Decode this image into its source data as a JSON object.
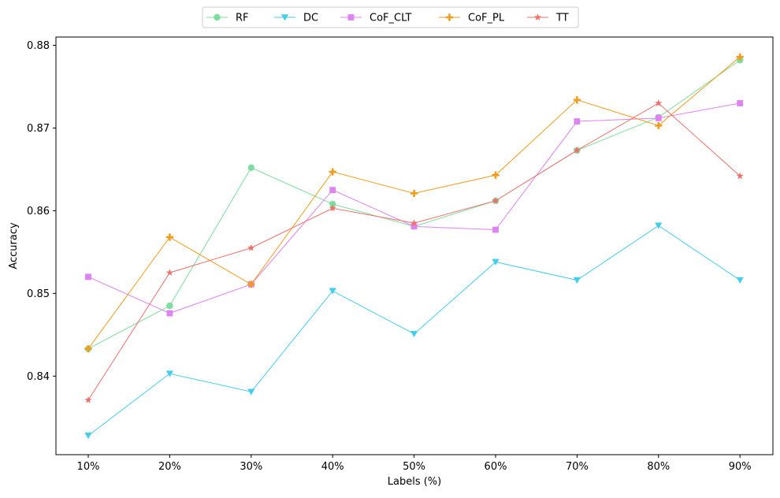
{
  "chart_data": {
    "type": "line",
    "title": "",
    "xlabel": "Labels (%)",
    "ylabel": "Accuracy",
    "categories": [
      "10%",
      "20%",
      "30%",
      "40%",
      "50%",
      "60%",
      "70%",
      "80%",
      "90%"
    ],
    "ylim": [
      0.8305,
      0.881
    ],
    "yticks": [
      0.84,
      0.85,
      0.86,
      0.87,
      0.88
    ],
    "ytick_labels": [
      "0.84",
      "0.85",
      "0.86",
      "0.87",
      "0.88"
    ],
    "grid": false,
    "legend_position": "top-center",
    "series": [
      {
        "name": "RF",
        "color": "#7fdc9f",
        "marker": "circle",
        "values": [
          0.8433,
          0.8485,
          0.8652,
          0.8608,
          0.8581,
          0.8612,
          0.8673,
          0.8713,
          0.8782
        ]
      },
      {
        "name": "DC",
        "color": "#46cdee",
        "marker": "triangle-down",
        "values": [
          0.8328,
          0.8403,
          0.8381,
          0.8503,
          0.8451,
          0.8538,
          0.8516,
          0.8582,
          0.8516
        ]
      },
      {
        "name": "CoF_CLT",
        "color": "#de83f2",
        "marker": "square",
        "values": [
          0.852,
          0.8476,
          0.8511,
          0.8625,
          0.8581,
          0.8577,
          0.8708,
          0.8712,
          0.873
        ]
      },
      {
        "name": "CoF_PL",
        "color": "#f39b1b",
        "marker": "plus",
        "values": [
          0.8433,
          0.8568,
          0.8511,
          0.8647,
          0.8621,
          0.8643,
          0.8734,
          0.8703,
          0.8786
        ]
      },
      {
        "name": "TT",
        "color": "#f0706a",
        "marker": "star",
        "values": [
          0.8371,
          0.8525,
          0.8555,
          0.8603,
          0.8585,
          0.8612,
          0.8673,
          0.873,
          0.8642
        ]
      }
    ]
  }
}
